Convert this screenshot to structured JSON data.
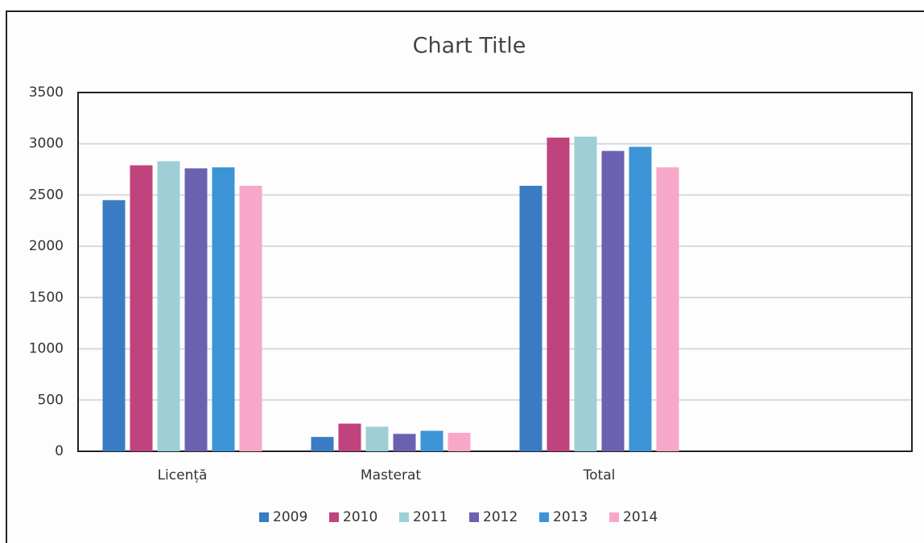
{
  "chart_data": {
    "type": "bar",
    "title": "Chart Title",
    "categories": [
      "Licență",
      "Masterat",
      "Total",
      null
    ],
    "series": [
      {
        "name": "2009",
        "color": "#3a7cc4",
        "values": [
          2450,
          140,
          2590,
          null
        ]
      },
      {
        "name": "2010",
        "color": "#c0437e",
        "values": [
          2790,
          270,
          3060,
          null
        ]
      },
      {
        "name": "2011",
        "color": "#9fcfd6",
        "values": [
          2830,
          240,
          3070,
          null
        ]
      },
      {
        "name": "2012",
        "color": "#6a62b0",
        "values": [
          2760,
          170,
          2930,
          null
        ]
      },
      {
        "name": "2013",
        "color": "#3c94d6",
        "values": [
          2770,
          200,
          2970,
          null
        ]
      },
      {
        "name": "2014",
        "color": "#f7a8c8",
        "values": [
          2590,
          180,
          2770,
          null
        ]
      }
    ],
    "ylim": [
      0,
      3500
    ],
    "yticks": [
      0,
      500,
      1000,
      1500,
      2000,
      2500,
      3000,
      3500
    ],
    "grid": true,
    "legend": "bottom"
  }
}
